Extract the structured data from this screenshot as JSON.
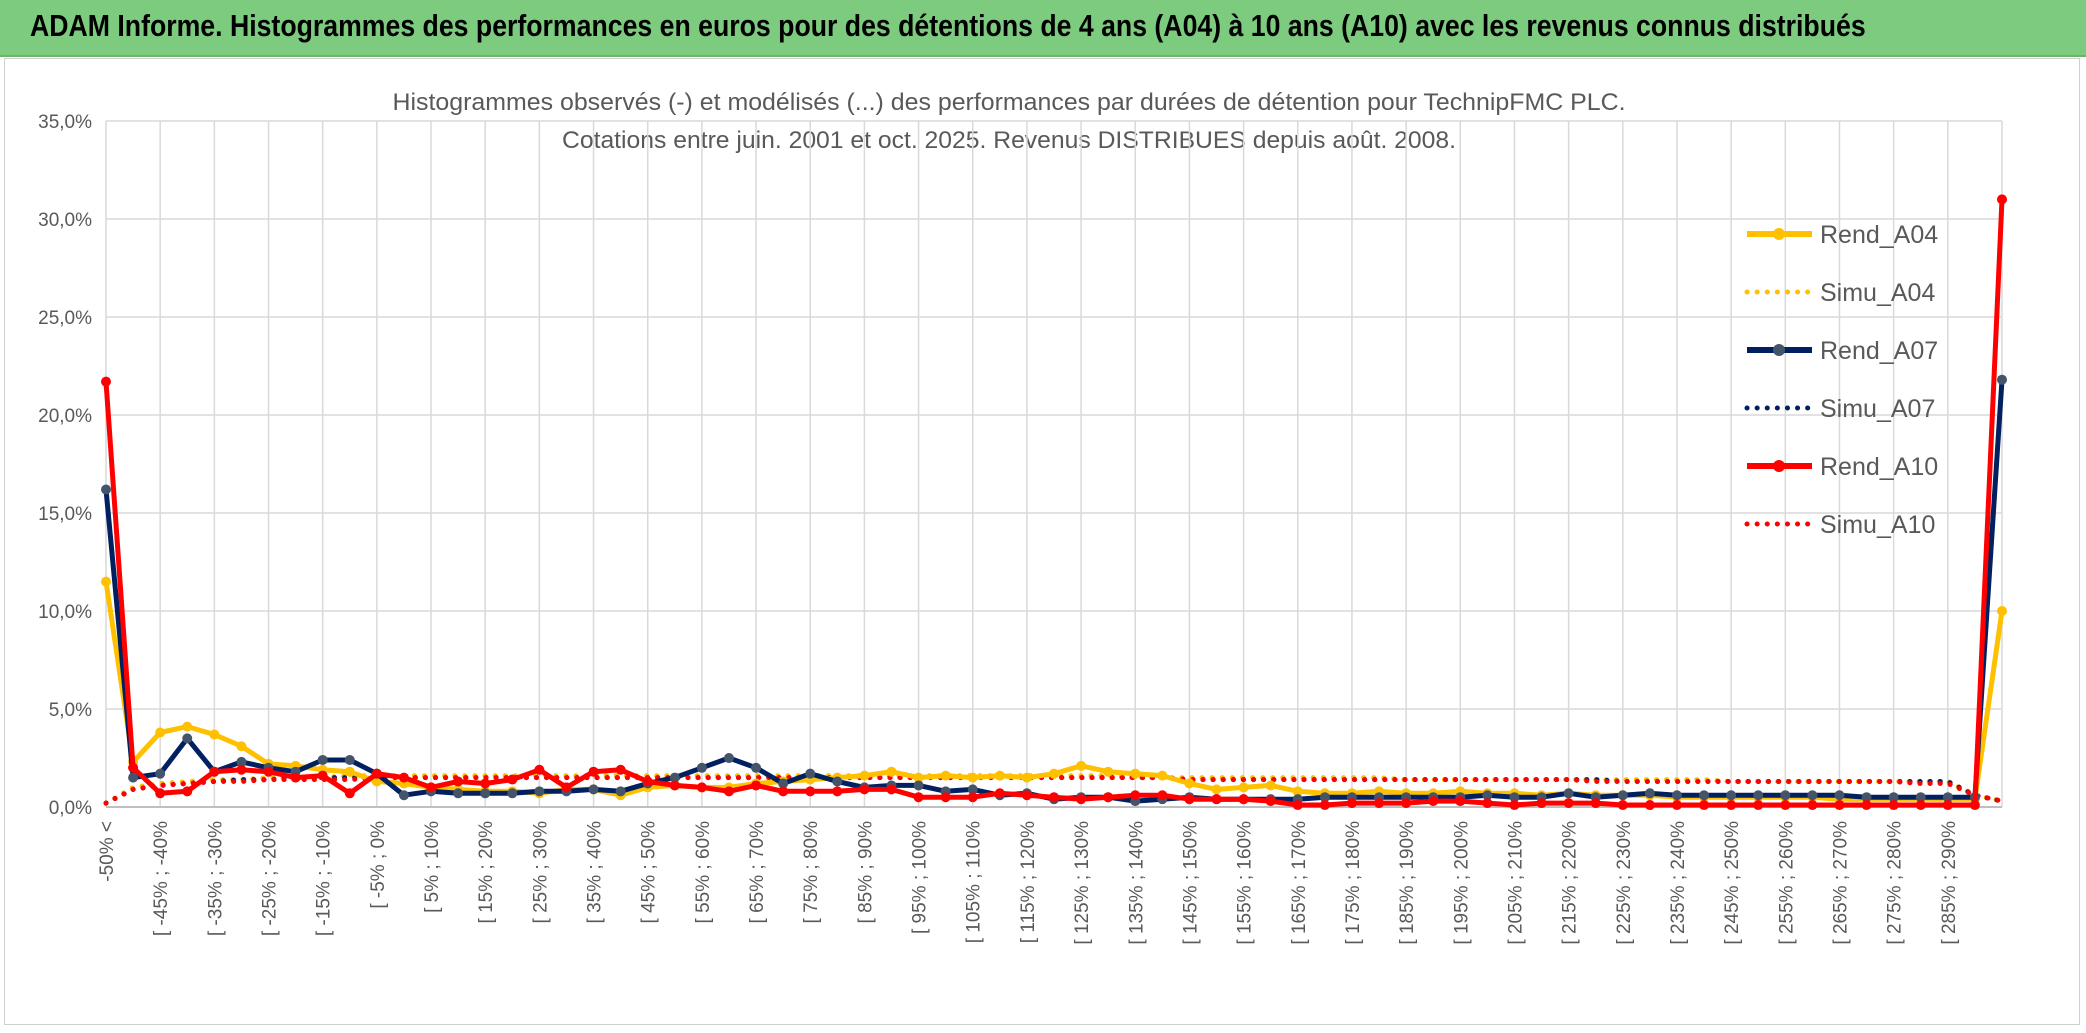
{
  "banner": {
    "title": "ADAM Informe. Histogrammes des performances en euros pour des détentions de 4 ans (A04) à 10 ans (A10) avec les revenus connus distribués"
  },
  "chart_data": {
    "type": "line",
    "title": "Histogrammes observés (-) et modélisés (...) des performances par durées de détention pour TechnipFMC PLC.",
    "subtitle": "Cotations entre juin. 2001 et oct. 2025. Revenus DISTRIBUES depuis août. 2008.",
    "xlabel": "",
    "ylabel": "",
    "ylim": [
      0,
      35
    ],
    "yticks": [
      "0,0%",
      "5,0%",
      "10,0%",
      "15,0%",
      "20,0%",
      "25,0%",
      "30,0%",
      "35,0%"
    ],
    "grid": true,
    "legend_position": "right",
    "categories": [
      "-50% <",
      "[ -50% ; -45%",
      "[ -45% ; -40%",
      "[ -40% ; -35%",
      "[ -35% ; -30%",
      "[ -30% ; -25%",
      "[ -25% ; -20%",
      "[ -20% ; -15%",
      "[ -15% ; -10%",
      "[ -10% ; -5%",
      "[ -5% ; 0%",
      "[ 0% ; 5%",
      "[ 5% ; 10%",
      "[ 10% ; 15%",
      "[ 15% ; 20%",
      "[ 20% ; 25%",
      "[ 25% ; 30%",
      "[ 30% ; 35%",
      "[ 35% ; 40%",
      "[ 40% ; 45%",
      "[ 45% ; 50%",
      "[ 50% ; 55%",
      "[ 55% ; 60%",
      "[ 60% ; 65%",
      "[ 65% ; 70%",
      "[ 70% ; 75%",
      "[ 75% ; 80%",
      "[ 80% ; 85%",
      "[ 85% ; 90%",
      "[ 90% ; 95%",
      "[ 95% ; 100%",
      "[ 100% ; 105%",
      "[ 105% ; 110%",
      "[ 110% ; 115%",
      "[ 115% ; 120%",
      "[ 120% ; 125%",
      "[ 125% ; 130%",
      "[ 130% ; 135%",
      "[ 135% ; 140%",
      "[ 140% ; 145%",
      "[ 145% ; 150%",
      "[ 150% ; 155%",
      "[ 155% ; 160%",
      "[ 160% ; 165%",
      "[ 165% ; 170%",
      "[ 170% ; 175%",
      "[ 175% ; 180%",
      "[ 180% ; 185%",
      "[ 185% ; 190%",
      "[ 190% ; 195%",
      "[ 195% ; 200%",
      "[ 200% ; 205%",
      "[ 205% ; 210%",
      "[ 210% ; 215%",
      "[ 215% ; 220%",
      "[ 220% ; 225%",
      "[ 225% ; 230%",
      "[ 230% ; 235%",
      "[ 235% ; 240%",
      "[ 240% ; 245%",
      "[ 245% ; 250%",
      "[ 250% ; 255%",
      "[ 255% ; 260%",
      "[ 260% ; 265%",
      "[ 265% ; 270%",
      "[ 270% ; 275%",
      "[ 275% ; 280%",
      "[ 280% ; 285%",
      "[ 285% ; 290%",
      "[ 290% ; 295%",
      "295% <"
    ],
    "visible_tick_labels": [
      "-50% <",
      "[ -45% ; -40%",
      "[ -35% ; -30%",
      "[ -25% ; -20%",
      "[ -15% ; -10%",
      "[ -5% ; 0%",
      "[ 5% ; 10%",
      "[ 15% ; 20%",
      "[ 25% ; 30%",
      "[ 35% ; 40%",
      "[ 45% ; 50%",
      "[ 55% ; 60%",
      "[ 65% ; 70%",
      "[ 75% ; 80%",
      "[ 85% ; 90%",
      "[ 95% ; 100%",
      "[ 105% ; 110%",
      "[ 115% ; 120%",
      "[ 125% ; 130%",
      "[ 135% ; 140%",
      "[ 145% ; 150%",
      "[ 155% ; 160%",
      "[ 165% ; 170%",
      "[ 175% ; 180%",
      "[ 185% ; 190%",
      "[ 195% ; 200%",
      "[ 205% ; 210%",
      "[ 215% ; 220%",
      "[ 225% ; 230%",
      "[ 235% ; 240%",
      "[ 245% ; 250%",
      "[ 255% ; 260%",
      "[ 265% ; 270%",
      "[ 275% ; 280%",
      "[ 285% ; 290%"
    ],
    "series": [
      {
        "name": "Rend_A04",
        "style": "solid",
        "color": "#ffc000",
        "values": [
          11.5,
          2.3,
          3.8,
          4.1,
          3.7,
          3.1,
          2.2,
          2.1,
          1.9,
          1.8,
          1.3,
          1.2,
          1.0,
          0.9,
          0.8,
          0.8,
          0.7,
          0.9,
          0.9,
          0.6,
          1.0,
          1.1,
          1.0,
          1.0,
          1.2,
          1.3,
          1.4,
          1.5,
          1.6,
          1.8,
          1.5,
          1.6,
          1.5,
          1.6,
          1.5,
          1.7,
          2.1,
          1.8,
          1.7,
          1.6,
          1.2,
          0.9,
          1.0,
          1.1,
          0.8,
          0.7,
          0.7,
          0.8,
          0.7,
          0.7,
          0.8,
          0.7,
          0.7,
          0.6,
          0.7,
          0.6,
          0.6,
          0.6,
          0.5,
          0.5,
          0.5,
          0.5,
          0.5,
          0.5,
          0.4,
          0.4,
          0.4,
          0.4,
          0.4,
          0.4,
          10.0
        ]
      },
      {
        "name": "Simu_A04",
        "style": "dotted",
        "color": "#ffc000",
        "values": [
          0.2,
          1.0,
          1.2,
          1.3,
          1.4,
          1.4,
          1.5,
          1.5,
          1.5,
          1.6,
          1.6,
          1.6,
          1.6,
          1.6,
          1.6,
          1.6,
          1.6,
          1.6,
          1.6,
          1.6,
          1.6,
          1.6,
          1.6,
          1.6,
          1.6,
          1.6,
          1.6,
          1.6,
          1.6,
          1.6,
          1.6,
          1.6,
          1.6,
          1.6,
          1.6,
          1.6,
          1.6,
          1.6,
          1.5,
          1.5,
          1.5,
          1.5,
          1.5,
          1.5,
          1.5,
          1.5,
          1.5,
          1.5,
          1.4,
          1.4,
          1.4,
          1.4,
          1.4,
          1.4,
          1.4,
          1.4,
          1.4,
          1.4,
          1.4,
          1.4,
          1.3,
          1.3,
          1.3,
          1.3,
          1.3,
          1.3,
          1.3,
          1.3,
          1.3,
          0.6,
          0.3
        ]
      },
      {
        "name": "Rend_A07",
        "style": "solid",
        "color": "#002060",
        "values": [
          16.2,
          1.5,
          1.7,
          3.5,
          1.8,
          2.3,
          2.0,
          1.8,
          2.4,
          2.4,
          1.7,
          0.6,
          0.8,
          0.7,
          0.7,
          0.7,
          0.8,
          0.8,
          0.9,
          0.8,
          1.2,
          1.5,
          2.0,
          2.5,
          2.0,
          1.2,
          1.7,
          1.3,
          1.0,
          1.1,
          1.1,
          0.8,
          0.9,
          0.6,
          0.7,
          0.4,
          0.5,
          0.5,
          0.3,
          0.4,
          0.5,
          0.4,
          0.4,
          0.4,
          0.4,
          0.5,
          0.5,
          0.5,
          0.5,
          0.5,
          0.5,
          0.6,
          0.5,
          0.5,
          0.7,
          0.5,
          0.6,
          0.7,
          0.6,
          0.6,
          0.6,
          0.6,
          0.6,
          0.6,
          0.6,
          0.5,
          0.5,
          0.5,
          0.5,
          0.5,
          21.8
        ]
      },
      {
        "name": "Simu_A07",
        "style": "dotted",
        "color": "#002060",
        "values": [
          0.2,
          0.9,
          1.1,
          1.2,
          1.3,
          1.4,
          1.4,
          1.5,
          1.5,
          1.5,
          1.5,
          1.5,
          1.5,
          1.5,
          1.5,
          1.5,
          1.5,
          1.5,
          1.5,
          1.5,
          1.5,
          1.5,
          1.5,
          1.5,
          1.5,
          1.5,
          1.5,
          1.5,
          1.5,
          1.5,
          1.5,
          1.5,
          1.5,
          1.5,
          1.5,
          1.5,
          1.5,
          1.5,
          1.5,
          1.5,
          1.4,
          1.4,
          1.4,
          1.4,
          1.4,
          1.4,
          1.4,
          1.4,
          1.4,
          1.4,
          1.4,
          1.4,
          1.4,
          1.4,
          1.4,
          1.4,
          1.3,
          1.3,
          1.3,
          1.3,
          1.3,
          1.3,
          1.3,
          1.3,
          1.3,
          1.3,
          1.3,
          1.3,
          1.3,
          0.6,
          0.3
        ]
      },
      {
        "name": "Rend_A10",
        "style": "solid",
        "color": "#ff0000",
        "values": [
          21.7,
          2.0,
          0.7,
          0.8,
          1.8,
          1.9,
          1.8,
          1.5,
          1.6,
          0.7,
          1.7,
          1.5,
          1.0,
          1.3,
          1.2,
          1.4,
          1.9,
          1.0,
          1.8,
          1.9,
          1.3,
          1.1,
          1.0,
          0.8,
          1.1,
          0.8,
          0.8,
          0.8,
          0.9,
          0.9,
          0.5,
          0.5,
          0.5,
          0.7,
          0.6,
          0.5,
          0.4,
          0.5,
          0.6,
          0.6,
          0.4,
          0.4,
          0.4,
          0.3,
          0.1,
          0.1,
          0.2,
          0.2,
          0.2,
          0.3,
          0.3,
          0.2,
          0.1,
          0.2,
          0.2,
          0.2,
          0.1,
          0.1,
          0.1,
          0.1,
          0.1,
          0.1,
          0.1,
          0.1,
          0.1,
          0.1,
          0.1,
          0.1,
          0.1,
          0.1,
          31.0
        ]
      },
      {
        "name": "Simu_A10",
        "style": "dotted",
        "color": "#ff0000",
        "values": [
          0.2,
          0.9,
          1.1,
          1.2,
          1.3,
          1.3,
          1.4,
          1.4,
          1.4,
          1.4,
          1.5,
          1.5,
          1.5,
          1.5,
          1.5,
          1.5,
          1.5,
          1.5,
          1.5,
          1.5,
          1.5,
          1.5,
          1.5,
          1.5,
          1.5,
          1.5,
          1.5,
          1.5,
          1.5,
          1.5,
          1.5,
          1.5,
          1.5,
          1.5,
          1.5,
          1.5,
          1.5,
          1.5,
          1.5,
          1.5,
          1.4,
          1.4,
          1.4,
          1.4,
          1.4,
          1.4,
          1.4,
          1.4,
          1.4,
          1.4,
          1.4,
          1.4,
          1.4,
          1.4,
          1.4,
          1.3,
          1.3,
          1.3,
          1.3,
          1.3,
          1.3,
          1.3,
          1.3,
          1.3,
          1.3,
          1.3,
          1.3,
          1.2,
          1.2,
          0.6,
          0.3
        ]
      }
    ]
  }
}
